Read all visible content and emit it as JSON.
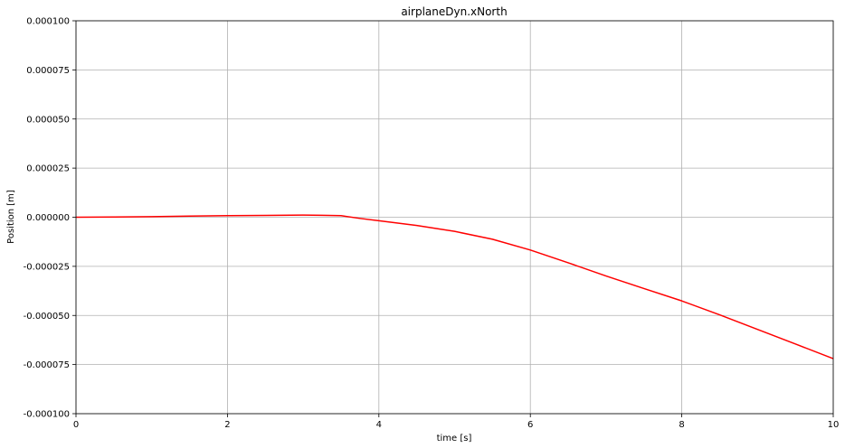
{
  "chart_data": {
    "type": "line",
    "title": "airplaneDyn.xNorth",
    "xlabel": "time [s]",
    "ylabel": "Position [m]",
    "xlim": [
      0,
      10
    ],
    "ylim": [
      -0.0001,
      0.0001
    ],
    "x_ticks": [
      0,
      2,
      4,
      6,
      8,
      10
    ],
    "x_tick_labels": [
      "0",
      "2",
      "4",
      "6",
      "8",
      "10"
    ],
    "y_ticks": [
      0.0001,
      7.5e-05,
      5e-05,
      2.5e-05,
      0,
      -2.5e-05,
      -5e-05,
      -7.5e-05,
      -0.0001
    ],
    "y_tick_labels": [
      "0.000100",
      "0.000075",
      "0.000050",
      "0.000025",
      "0.000000",
      "-0.000025",
      "-0.000050",
      "-0.000075",
      "-0.000100"
    ],
    "grid": true,
    "series": [
      {
        "color": "#ff0000",
        "x": [
          0,
          0.5,
          1,
          1.5,
          2,
          2.5,
          3,
          3.25,
          3.5,
          3.75,
          4,
          4.5,
          5,
          5.5,
          6,
          6.5,
          7,
          7.5,
          8,
          8.5,
          9,
          9.5,
          10
        ],
        "y": [
          0,
          1e-07,
          3e-07,
          6e-07,
          8e-07,
          9e-07,
          1.1e-06,
          1e-06,
          8e-07,
          -6e-07,
          -1.8e-06,
          -4.2e-06,
          -7.2e-06,
          -1.12e-05,
          -1.67e-05,
          -2.32e-05,
          -2.99e-05,
          -3.63e-05,
          -4.26e-05,
          -4.97e-05,
          -5.71e-05,
          -6.45e-05,
          -7.2e-05
        ]
      }
    ]
  }
}
